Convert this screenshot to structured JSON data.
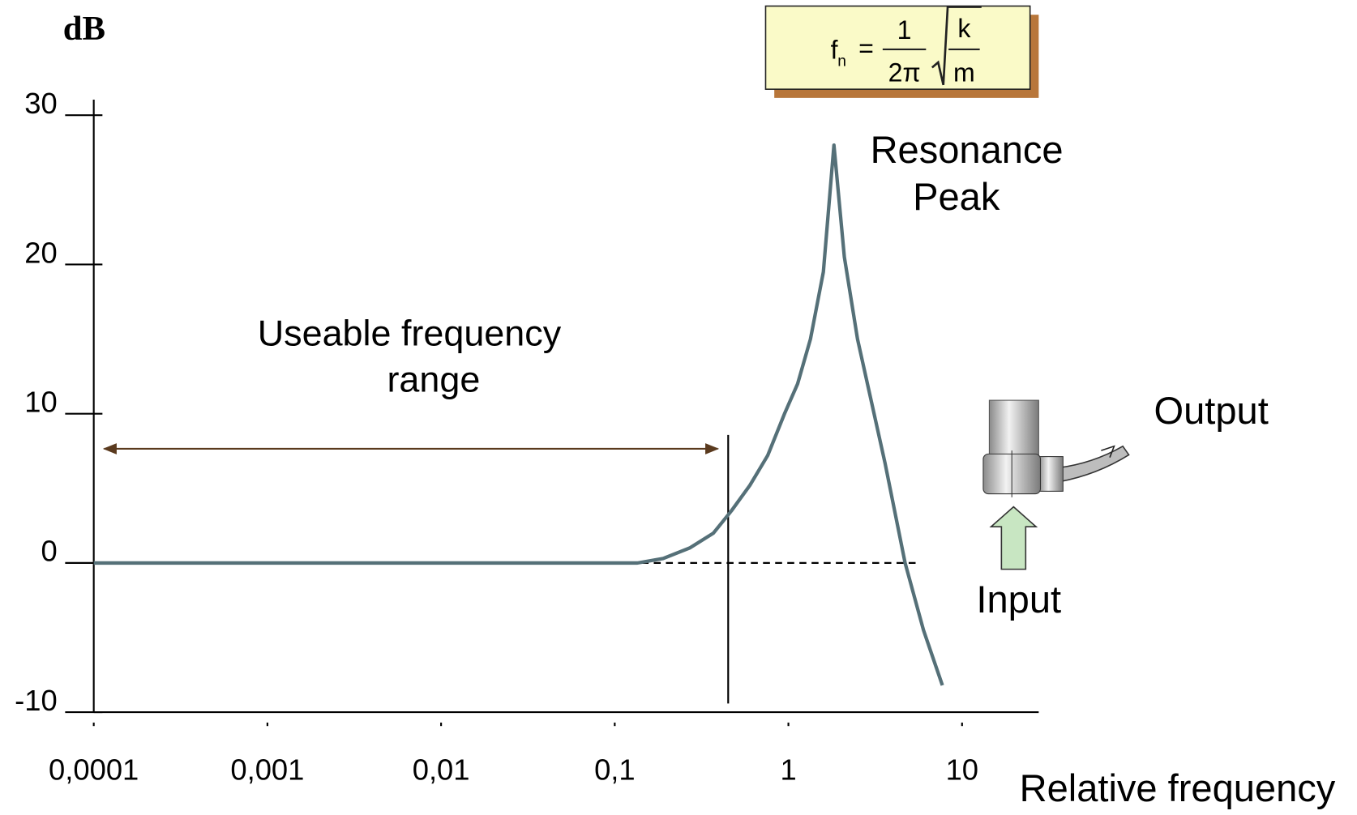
{
  "chart_data": {
    "type": "line",
    "y_label": "dB",
    "x_label": "Relative frequency",
    "xscale": "log",
    "x": [
      0.0001,
      0.135,
      0.19,
      0.27,
      0.37,
      0.47,
      0.6,
      0.76,
      0.95,
      1.13,
      1.34,
      1.59,
      1.83,
      2.1,
      2.5,
      3.6,
      4.7,
      6.0,
      7.7
    ],
    "series": [
      {
        "color": "#557078",
        "values": [
          0,
          0,
          0.3,
          1,
          2,
          3.5,
          5.2,
          7.2,
          10,
          12,
          15,
          19.5,
          28,
          20.5,
          15,
          6.7,
          0,
          -4.5,
          -8.2
        ]
      }
    ],
    "xlim": [
      0.0001,
      27
    ],
    "xticks": [
      {
        "value": 0.0001,
        "label": "0,0001"
      },
      {
        "value": 0.001,
        "label": "0,001"
      },
      {
        "value": 0.01,
        "label": "0,01"
      },
      {
        "value": 0.1,
        "label": "0,1"
      },
      1,
      10
    ],
    "ylim": [
      -10,
      30
    ],
    "yticks": [
      -10,
      0,
      10,
      20,
      30
    ],
    "reference_line": 0,
    "usable_range": {
      "text": [
        "Useable frequency",
        "range"
      ],
      "from": 0.0001,
      "to": 0.45
    },
    "peak_label": [
      "Resonance",
      "Peak"
    ],
    "output_label": "Output",
    "input_label": "Input",
    "formula": {
      "lhs": "f",
      "sub": "n",
      "eq": "=",
      "num": "1",
      "den": "2π",
      "rad_num": "k",
      "rad_den": "m"
    }
  }
}
